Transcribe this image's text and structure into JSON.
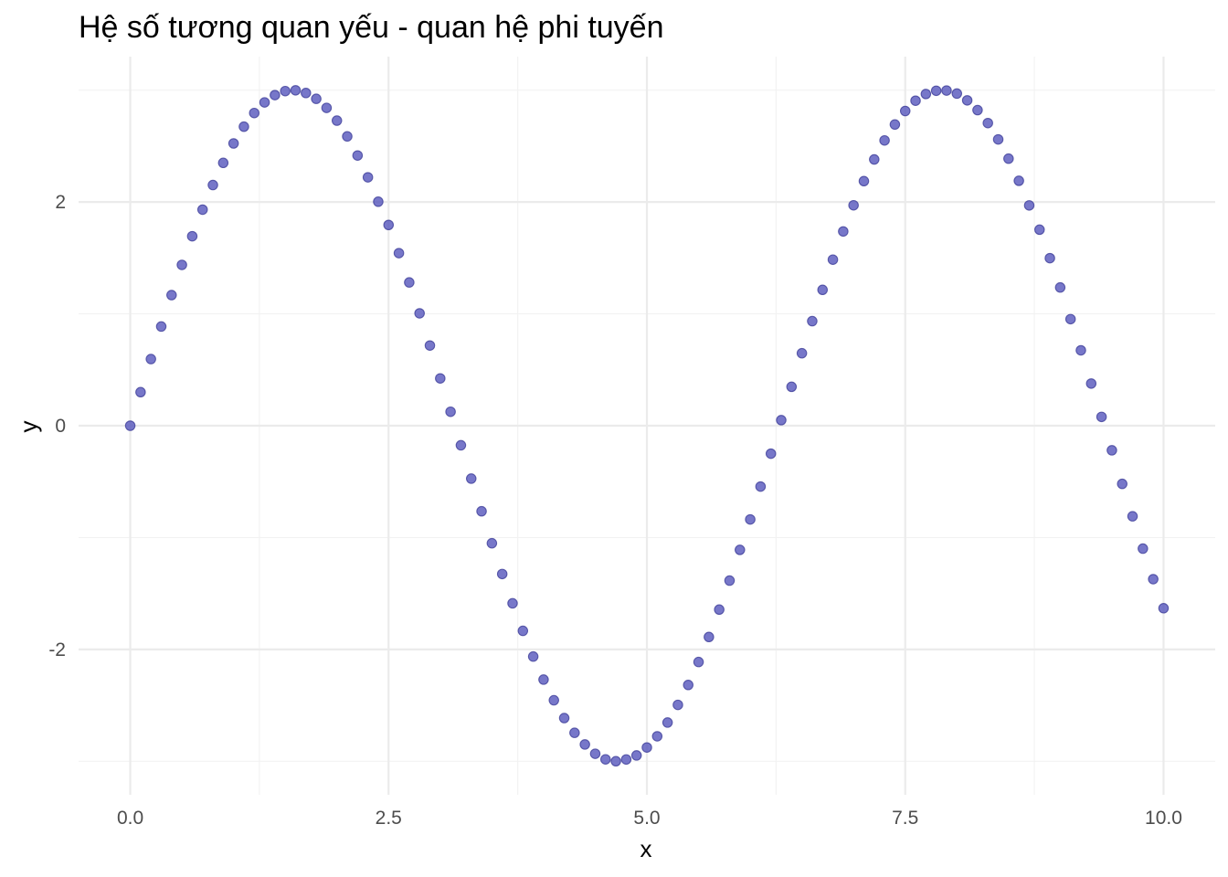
{
  "chart_data": {
    "type": "scatter",
    "title": "Hệ số tương quan yếu - quan hệ phi tuyến",
    "xlabel": "x",
    "ylabel": "y",
    "xlim": [
      -0.5,
      10.5
    ],
    "ylim": [
      -3.3,
      3.3
    ],
    "x_ticks": [
      {
        "value": 0.0,
        "label": "0.0"
      },
      {
        "value": 2.5,
        "label": "2.5"
      },
      {
        "value": 5.0,
        "label": "5.0"
      },
      {
        "value": 7.5,
        "label": "7.5"
      },
      {
        "value": 10.0,
        "label": "10.0"
      }
    ],
    "y_ticks": [
      {
        "value": -2,
        "label": "-2"
      },
      {
        "value": 0,
        "label": "0"
      },
      {
        "value": 2,
        "label": "2"
      }
    ],
    "x_minor_ticks": [
      1.25,
      3.75,
      6.25,
      8.75
    ],
    "y_minor_ticks": [
      -3,
      -1,
      1,
      3
    ],
    "grid": true,
    "legend": "none",
    "point_color": "#5555bb",
    "point_stroke": "#3d3d99",
    "series": [
      {
        "x": [
          0.0,
          0.1,
          0.2,
          0.3,
          0.4,
          0.5,
          0.6,
          0.7,
          0.8,
          0.9,
          1.0,
          1.1,
          1.2,
          1.3,
          1.4,
          1.5,
          1.6,
          1.7,
          1.8,
          1.9,
          2.0,
          2.1,
          2.2,
          2.3,
          2.4,
          2.5,
          2.6,
          2.7,
          2.8,
          2.9,
          3.0,
          3.1,
          3.2,
          3.3,
          3.4,
          3.5,
          3.6,
          3.7,
          3.8,
          3.9,
          4.0,
          4.1,
          4.2,
          4.3,
          4.4,
          4.5,
          4.6,
          4.7,
          4.8,
          4.9,
          5.0,
          5.1,
          5.2,
          5.3,
          5.4,
          5.5,
          5.6,
          5.7,
          5.8,
          5.9,
          6.0,
          6.1,
          6.2,
          6.3,
          6.4,
          6.5,
          6.6,
          6.7,
          6.8,
          6.9,
          7.0,
          7.1,
          7.2,
          7.3,
          7.4,
          7.5,
          7.6,
          7.7,
          7.8,
          7.9,
          8.0,
          8.1,
          8.2,
          8.3,
          8.4,
          8.5,
          8.6,
          8.7,
          8.8,
          8.9,
          9.0,
          9.1,
          9.2,
          9.3,
          9.4,
          9.5,
          9.6,
          9.7,
          9.8,
          9.9,
          10.0
        ],
        "y": [
          0.0,
          0.3,
          0.596,
          0.887,
          1.168,
          1.438,
          1.694,
          1.932,
          2.152,
          2.35,
          2.524,
          2.674,
          2.796,
          2.891,
          2.956,
          2.992,
          2.999,
          2.975,
          2.923,
          2.842,
          2.728,
          2.587,
          2.416,
          2.221,
          2.003,
          1.795,
          1.543,
          1.281,
          1.005,
          0.717,
          0.423,
          0.125,
          -0.175,
          -0.473,
          -0.765,
          -1.051,
          -1.326,
          -1.588,
          -1.834,
          -2.064,
          -2.27,
          -2.455,
          -2.614,
          -2.746,
          -2.85,
          -2.933,
          -2.983,
          -3.0,
          -2.984,
          -2.948,
          -2.877,
          -2.777,
          -2.654,
          -2.496,
          -2.318,
          -2.113,
          -1.889,
          -1.644,
          -1.385,
          -1.11,
          -0.838,
          -0.544,
          -0.25,
          0.05,
          0.348,
          0.648,
          0.935,
          1.215,
          1.485,
          1.737,
          1.971,
          2.187,
          2.381,
          2.551,
          2.693,
          2.814,
          2.906,
          2.966,
          2.995,
          2.997,
          2.97,
          2.909,
          2.822,
          2.706,
          2.56,
          2.388,
          2.19,
          1.97,
          1.753,
          1.498,
          1.236,
          0.953,
          0.674,
          0.377,
          0.079,
          -0.22,
          -0.52,
          -0.81,
          -1.099,
          -1.372,
          -1.632
        ]
      }
    ]
  }
}
